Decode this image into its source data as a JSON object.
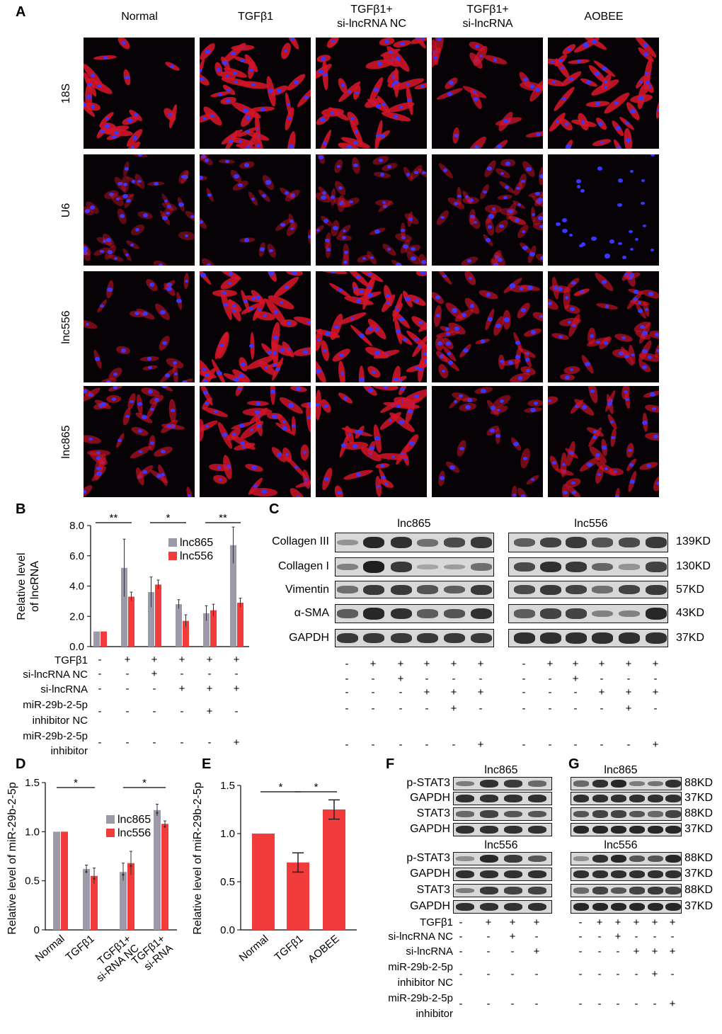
{
  "panel_labels": {
    "A": "A",
    "B": "B",
    "C": "C",
    "D": "D",
    "E": "E",
    "F": "F",
    "G": "G"
  },
  "panel_a": {
    "columns": [
      "Normal",
      "TGFβ1",
      "TGFβ1+\nsi-lncRNA NC",
      "TGFβ1+\nsi-lncRNA",
      "AOBEE"
    ],
    "rows": [
      "18S",
      "U6",
      "lnc556",
      "lnc865"
    ]
  },
  "chart_data": [
    {
      "panel": "B",
      "type": "bar",
      "ylabel": "Relative level\nof lncRNA",
      "ylim": [
        0,
        8
      ],
      "yticks": [
        "0.0",
        "2.0",
        "4.0",
        "6.0",
        "8.0"
      ],
      "series": [
        {
          "name": "lnc865",
          "color": "#9c9aa8",
          "values": [
            1.0,
            5.2,
            3.6,
            2.8,
            2.2,
            6.7
          ],
          "errors": [
            0,
            1.9,
            1.0,
            0.3,
            0.5,
            1.2
          ]
        },
        {
          "name": "lnc556",
          "color": "#f23c3c",
          "values": [
            1.0,
            3.3,
            4.1,
            1.7,
            2.4,
            2.9
          ],
          "errors": [
            0,
            0.3,
            0.3,
            0.4,
            0.4,
            0.3
          ]
        }
      ],
      "significance": [
        {
          "from": 0,
          "to": 1,
          "label": "**"
        },
        {
          "from": 2,
          "to": 3,
          "label": "*"
        },
        {
          "from": 4,
          "to": 5,
          "label": "**"
        }
      ],
      "conditions": [
        {
          "label": "TGFβ1",
          "values": [
            "-",
            "+",
            "+",
            "+",
            "+",
            "+"
          ]
        },
        {
          "label": "si-lncRNA NC",
          "values": [
            "-",
            "-",
            "+",
            "-",
            "-",
            "-"
          ]
        },
        {
          "label": "si-lncRNA",
          "values": [
            "-",
            "-",
            "-",
            "+",
            "+",
            "+"
          ]
        },
        {
          "label": "miR-29b-2-5p\ninhibitor NC",
          "values": [
            "-",
            "-",
            "-",
            "-",
            "+",
            "-"
          ]
        },
        {
          "label": "miR-29b-2-5p\ninhibitor",
          "values": [
            "-",
            "-",
            "-",
            "-",
            "-",
            "+"
          ]
        }
      ]
    },
    {
      "panel": "D",
      "type": "bar",
      "ylabel": "Relative level of miR-29b-2-5p",
      "ylim": [
        0,
        1.5
      ],
      "yticks": [
        "0",
        "0.5",
        "1.0",
        "1.5"
      ],
      "categories": [
        "Normal",
        "TGFβ1",
        "TGFβ1+\nsi-RNA NC",
        "TGFβ1+\nsi-RNA"
      ],
      "series": [
        {
          "name": "lnc865",
          "color": "#9c9aa8",
          "values": [
            1.0,
            0.62,
            0.59,
            1.22
          ],
          "errors": [
            0,
            0.04,
            0.09,
            0.06
          ]
        },
        {
          "name": "lnc556",
          "color": "#f23c3c",
          "values": [
            1.0,
            0.55,
            0.68,
            1.08
          ],
          "errors": [
            0,
            0.08,
            0.12,
            0.03
          ]
        }
      ],
      "significance": [
        {
          "from": 0,
          "to": 1,
          "label": "*"
        },
        {
          "from": 2,
          "to": 3,
          "label": "*"
        }
      ]
    },
    {
      "panel": "E",
      "type": "bar",
      "ylabel": "Relative level of miR-29b-2-5p",
      "ylim": [
        0,
        1.5
      ],
      "yticks": [
        "0.0",
        "0.5",
        "1.0",
        "1.5"
      ],
      "categories": [
        "Normal",
        "TGFβ1",
        "AOBEE"
      ],
      "series": [
        {
          "name": "",
          "color": "#f23c3c",
          "values": [
            1.0,
            0.7,
            1.25
          ],
          "errors": [
            0,
            0.1,
            0.1
          ]
        }
      ],
      "significance": [
        {
          "from": 0,
          "to": 1,
          "label": "*"
        },
        {
          "from": 1,
          "to": 2,
          "label": "*"
        }
      ]
    }
  ],
  "panel_c": {
    "left_title": "lnc865",
    "right_title": "lnc556",
    "proteins": [
      "Collagen III",
      "Collagen I",
      "Vimentin",
      "α-SMA",
      "GAPDH"
    ],
    "sizes": [
      "139KD",
      "130KD",
      "57KD",
      "43KD",
      "37KD"
    ],
    "intensity_left": [
      [
        0.3,
        0.9,
        0.85,
        0.5,
        0.7,
        0.8
      ],
      [
        0.4,
        0.95,
        0.8,
        0.2,
        0.25,
        0.5
      ],
      [
        0.5,
        0.8,
        0.8,
        0.65,
        0.6,
        0.8
      ],
      [
        0.6,
        0.9,
        0.85,
        0.6,
        0.65,
        0.85
      ],
      [
        0.8,
        0.8,
        0.8,
        0.8,
        0.8,
        0.8
      ]
    ],
    "intensity_right": [
      [
        0.6,
        0.75,
        0.8,
        0.65,
        0.7,
        0.8
      ],
      [
        0.7,
        0.85,
        0.8,
        0.55,
        0.3,
        0.75
      ],
      [
        0.7,
        0.8,
        0.75,
        0.5,
        0.75,
        0.8
      ],
      [
        0.6,
        0.75,
        0.75,
        0.4,
        0.4,
        0.9
      ],
      [
        0.85,
        0.85,
        0.85,
        0.85,
        0.85,
        0.85
      ]
    ],
    "conditions": [
      [
        "-",
        "+",
        "+",
        "+",
        "+",
        "+"
      ],
      [
        "-",
        "-",
        "+",
        "-",
        "-",
        "-"
      ],
      [
        "-",
        "-",
        "-",
        "+",
        "+",
        "+"
      ],
      [
        "-",
        "-",
        "-",
        "-",
        "+",
        "-"
      ],
      [
        "-",
        "-",
        "-",
        "-",
        "-",
        "+"
      ]
    ]
  },
  "panel_f": {
    "title_top": "lnc865",
    "title_bottom": "lnc556",
    "blots": [
      "p-STAT3",
      "GAPDH",
      "STAT3",
      "GAPDH"
    ],
    "condition_labels": [
      "TGFβ1",
      "si-lncRNA NC",
      "si-lncRNA",
      "miR-29b-2-5p\ninhibitor NC",
      "miR-29b-2-5p\ninhibitor"
    ],
    "conditions": [
      [
        "-",
        "+",
        "+",
        "+"
      ],
      [
        "-",
        "-",
        "+",
        "-"
      ],
      [
        "-",
        "-",
        "-",
        "+"
      ],
      [
        "-",
        "-",
        "-",
        "-"
      ],
      [
        "-",
        "-",
        "-",
        "-"
      ]
    ]
  },
  "panel_g": {
    "title_top": "lnc865",
    "title_bottom": "lnc556",
    "sizes": [
      "88KD",
      "37KD",
      "88KD",
      "37KD"
    ],
    "conditions": [
      [
        "-",
        "+",
        "+",
        "+",
        "+",
        "+"
      ],
      [
        "-",
        "-",
        "+",
        "-",
        "-",
        "-"
      ],
      [
        "-",
        "-",
        "-",
        "+",
        "+",
        "+"
      ],
      [
        "-",
        "-",
        "-",
        "-",
        "+",
        "-"
      ],
      [
        "-",
        "-",
        "-",
        "-",
        "-",
        "+"
      ]
    ]
  }
}
